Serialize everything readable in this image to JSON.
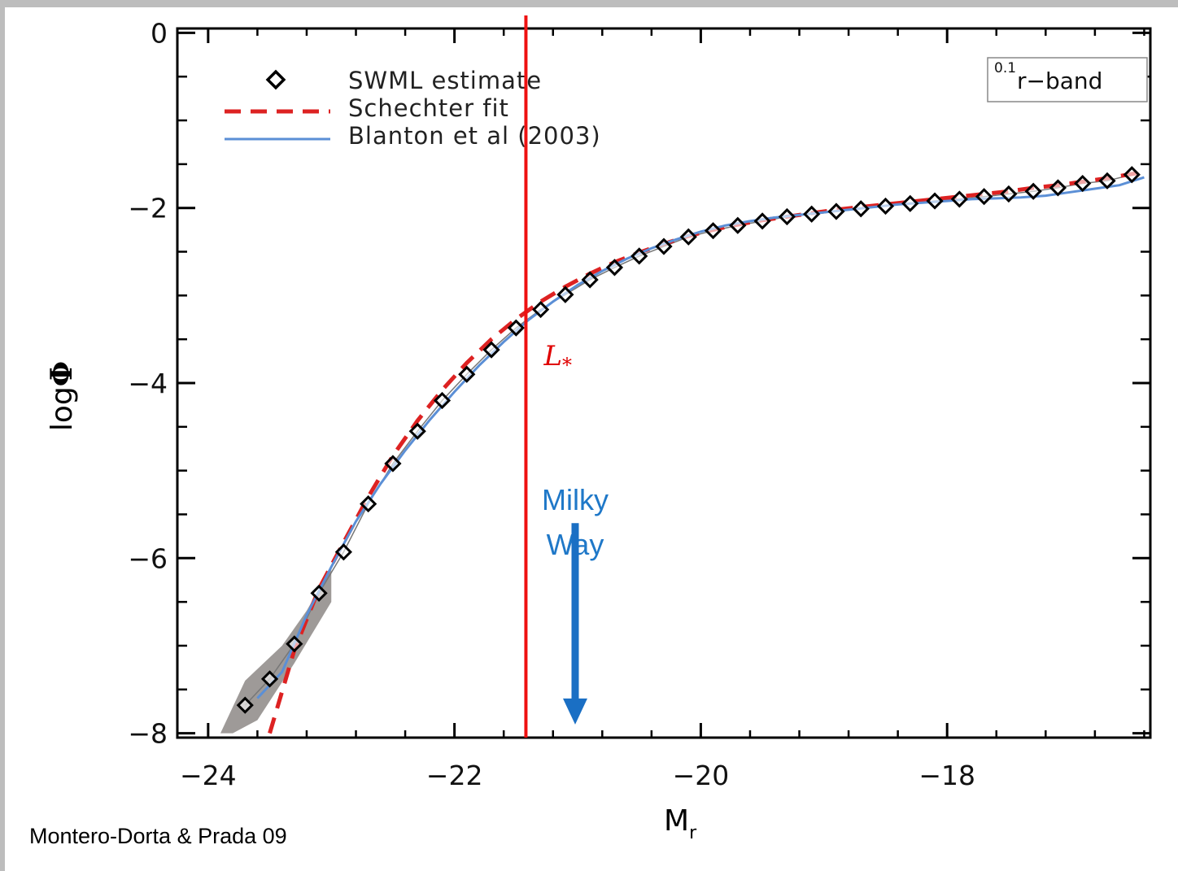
{
  "chart_data": {
    "type": "line",
    "title": "",
    "xlabel": "M",
    "xlabel_sub": "r",
    "ylabel": "log",
    "ylabel_symbol": "Φ",
    "xlim": [
      -24.25,
      -16.35
    ],
    "ylim": [
      -8.05,
      0.05
    ],
    "x_ticks": [
      -24,
      -22,
      -20,
      -18
    ],
    "x_tick_labels": [
      "−24",
      "−22",
      "−20",
      "−18"
    ],
    "y_ticks": [
      0,
      -2,
      -4,
      -6,
      -8
    ],
    "y_tick_labels": [
      "0",
      "−2",
      "−4",
      "−6",
      "−8"
    ],
    "legend_position": "top-left",
    "band_label_sup": "0.1",
    "band_label": "r−band",
    "series": [
      {
        "name": "SWML estimate",
        "marker": "diamond",
        "color": "#000000",
        "x": [
          -23.7,
          -23.5,
          -23.3,
          -23.1,
          -22.9,
          -22.7,
          -22.5,
          -22.3,
          -22.1,
          -21.9,
          -21.7,
          -21.5,
          -21.3,
          -21.1,
          -20.9,
          -20.7,
          -20.5,
          -20.3,
          -20.1,
          -19.9,
          -19.7,
          -19.5,
          -19.3,
          -19.1,
          -18.9,
          -18.7,
          -18.5,
          -18.3,
          -18.1,
          -17.9,
          -17.7,
          -17.5,
          -17.3,
          -17.1,
          -16.9,
          -16.7,
          -16.5
        ],
        "y": [
          -7.68,
          -7.38,
          -6.98,
          -6.4,
          -5.93,
          -5.38,
          -4.92,
          -4.55,
          -4.2,
          -3.9,
          -3.62,
          -3.37,
          -3.16,
          -2.99,
          -2.82,
          -2.68,
          -2.55,
          -2.44,
          -2.33,
          -2.26,
          -2.2,
          -2.15,
          -2.1,
          -2.07,
          -2.04,
          -2.01,
          -1.98,
          -1.95,
          -1.92,
          -1.9,
          -1.87,
          -1.84,
          -1.81,
          -1.77,
          -1.72,
          -1.69,
          -1.62
        ]
      },
      {
        "name": "Schechter fit",
        "style": "dashed",
        "color": "#dd2222",
        "x": [
          -23.5,
          -23.3,
          -23.1,
          -22.9,
          -22.7,
          -22.5,
          -22.3,
          -22.1,
          -21.9,
          -21.7,
          -21.5,
          -21.3,
          -21.1,
          -20.9,
          -20.7,
          -20.5,
          -20.3,
          -20.1,
          -19.9,
          -19.7,
          -19.5,
          -19.3,
          -19.1,
          -18.9,
          -18.7,
          -18.5,
          -18.3,
          -18.1,
          -17.9,
          -17.7,
          -17.5,
          -17.3,
          -17.1,
          -16.9,
          -16.7,
          -16.45
        ],
        "y": [
          -8.0,
          -7.05,
          -6.35,
          -5.82,
          -5.3,
          -4.83,
          -4.43,
          -4.08,
          -3.77,
          -3.5,
          -3.27,
          -3.07,
          -2.9,
          -2.75,
          -2.62,
          -2.51,
          -2.41,
          -2.32,
          -2.25,
          -2.19,
          -2.14,
          -2.1,
          -2.06,
          -2.02,
          -1.99,
          -1.96,
          -1.93,
          -1.9,
          -1.87,
          -1.84,
          -1.81,
          -1.77,
          -1.74,
          -1.7,
          -1.66,
          -1.6
        ]
      },
      {
        "name": "Blanton et al (2003)",
        "style": "solid",
        "color": "#5b8fd6",
        "x": [
          -23.6,
          -23.4,
          -23.2,
          -23.0,
          -22.8,
          -22.6,
          -22.4,
          -22.2,
          -22.0,
          -21.8,
          -21.6,
          -21.4,
          -21.2,
          -21.0,
          -20.8,
          -20.6,
          -20.4,
          -20.2,
          -20.0,
          -19.8,
          -19.6,
          -19.4,
          -19.2,
          -19.0,
          -18.8,
          -18.6,
          -18.4,
          -18.2,
          -18.0,
          -17.8,
          -17.6,
          -17.4,
          -17.2,
          -17.0,
          -16.8,
          -16.6,
          -16.4
        ],
        "y": [
          -7.6,
          -7.3,
          -6.65,
          -6.1,
          -5.58,
          -5.15,
          -4.77,
          -4.42,
          -4.1,
          -3.8,
          -3.53,
          -3.28,
          -3.07,
          -2.88,
          -2.72,
          -2.58,
          -2.46,
          -2.36,
          -2.27,
          -2.2,
          -2.15,
          -2.11,
          -2.08,
          -2.05,
          -2.02,
          -1.99,
          -1.96,
          -1.94,
          -1.92,
          -1.9,
          -1.89,
          -1.88,
          -1.86,
          -1.82,
          -1.78,
          -1.74,
          -1.65
        ]
      }
    ],
    "error_band": {
      "upper_x": [
        -23.9,
        -23.7,
        -23.4,
        -23.2,
        -23.0
      ],
      "upper_y": [
        -8.0,
        -7.4,
        -7.0,
        -6.6,
        -6.1
      ],
      "lower_x": [
        -23.0,
        -23.3,
        -23.6,
        -23.8
      ],
      "lower_y": [
        -6.5,
        -7.2,
        -7.85,
        -8.0
      ],
      "color": "#9e9a98"
    },
    "annotations": {
      "lstar": {
        "label": "L",
        "subscript": "*",
        "x": -21.42,
        "color": "#ee1111"
      },
      "milky_way": {
        "line1": "Milky",
        "line2": "Way",
        "x": -21.02,
        "arrow_from_y": -5.6,
        "arrow_to_y": -7.9,
        "color": "#1a6fc4"
      }
    }
  },
  "credit": "Montero-Dorta & Prada 09"
}
